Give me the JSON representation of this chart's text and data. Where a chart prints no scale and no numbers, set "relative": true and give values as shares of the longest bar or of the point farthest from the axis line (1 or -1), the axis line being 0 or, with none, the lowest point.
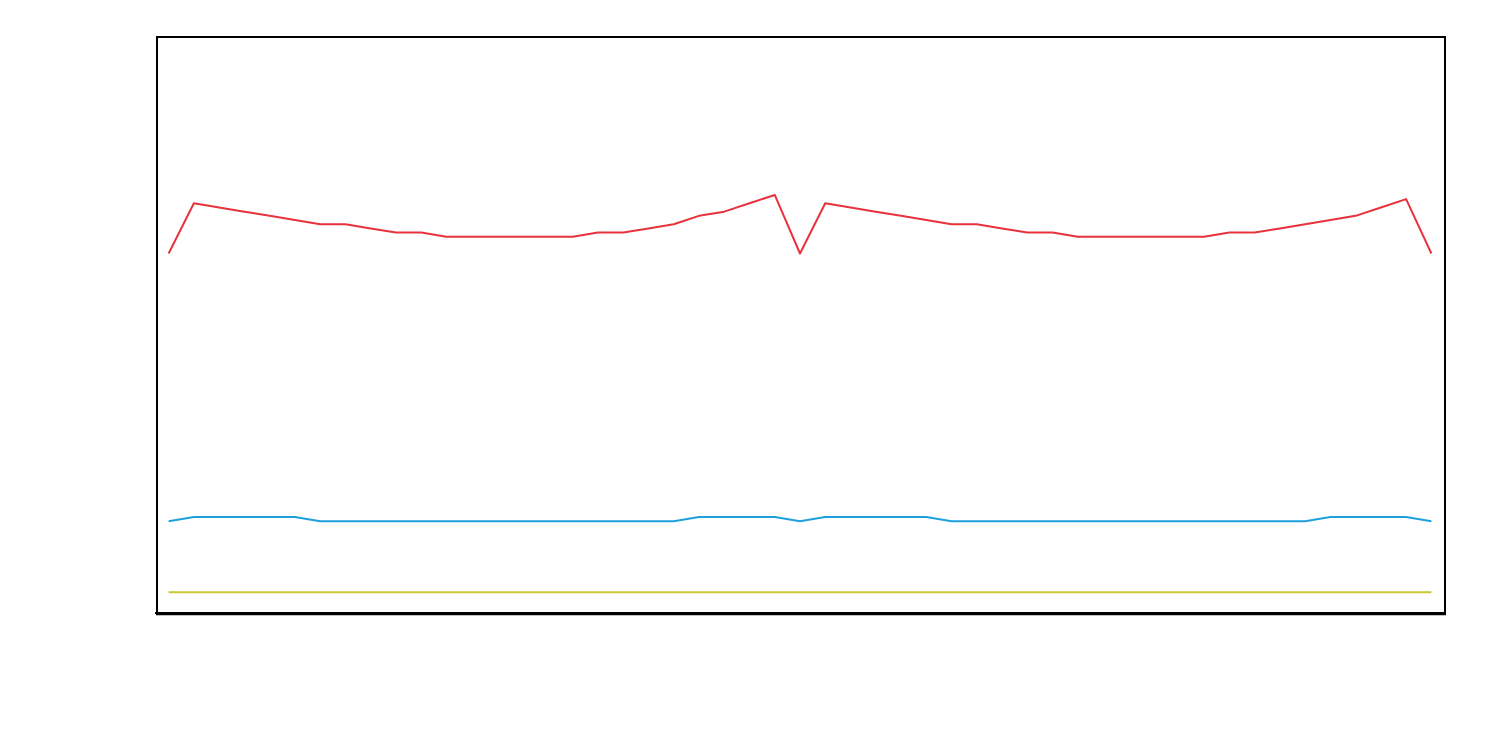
{
  "chart_data": {
    "type": "line",
    "relative": true,
    "marker": "none",
    "line_style": "solid",
    "categories": [
      null,
      null,
      null,
      null,
      null,
      null,
      null,
      null,
      null,
      null,
      null,
      null,
      null,
      null,
      null,
      null,
      null,
      null,
      null,
      null,
      null,
      null,
      null,
      null,
      null,
      null,
      null,
      null,
      null,
      null,
      null,
      null,
      null,
      null,
      null,
      null,
      null,
      null,
      null,
      null,
      null,
      null,
      null,
      null,
      null,
      null,
      null,
      null,
      null,
      null,
      null
    ],
    "series": [
      {
        "color": "#e8323c",
        "values": [
          0.86,
          0.98,
          0.97,
          0.96,
          0.95,
          0.94,
          0.93,
          0.93,
          0.92,
          0.91,
          0.91,
          0.9,
          0.9,
          0.9,
          0.9,
          0.9,
          0.9,
          0.91,
          0.91,
          0.92,
          0.93,
          0.95,
          0.96,
          0.98,
          1,
          0.86,
          0.98,
          0.97,
          0.96,
          0.95,
          0.94,
          0.93,
          0.93,
          0.92,
          0.91,
          0.91,
          0.9,
          0.9,
          0.9,
          0.9,
          0.9,
          0.9,
          0.91,
          0.91,
          0.92,
          0.93,
          0.94,
          0.95,
          0.97,
          0.99,
          0.86
        ]
      },
      {
        "color": "#1fa0dc",
        "values": [
          0.22,
          0.23,
          0.23,
          0.23,
          0.23,
          0.23,
          0.22,
          0.22,
          0.22,
          0.22,
          0.22,
          0.22,
          0.22,
          0.22,
          0.22,
          0.22,
          0.22,
          0.22,
          0.22,
          0.22,
          0.22,
          0.23,
          0.23,
          0.23,
          0.23,
          0.22,
          0.23,
          0.23,
          0.23,
          0.23,
          0.23,
          0.22,
          0.22,
          0.22,
          0.22,
          0.22,
          0.22,
          0.22,
          0.22,
          0.22,
          0.22,
          0.22,
          0.22,
          0.22,
          0.22,
          0.22,
          0.23,
          0.23,
          0.23,
          0.23,
          0.22
        ]
      },
      {
        "color": "#c8c832",
        "values": [
          0.05,
          0.05,
          0.05,
          0.05,
          0.05,
          0.05,
          0.05,
          0.05,
          0.05,
          0.05,
          0.05,
          0.05,
          0.05,
          0.05,
          0.05,
          0.05,
          0.05,
          0.05,
          0.05,
          0.05,
          0.05,
          0.05,
          0.05,
          0.05,
          0.05,
          0.05,
          0.05,
          0.05,
          0.05,
          0.05,
          0.05,
          0.05,
          0.05,
          0.05,
          0.05,
          0.05,
          0.05,
          0.05,
          0.05,
          0.05,
          0.05,
          0.05,
          0.05,
          0.05,
          0.05,
          0.05,
          0.05,
          0.05,
          0.05,
          0.05,
          0.05
        ]
      }
    ]
  }
}
